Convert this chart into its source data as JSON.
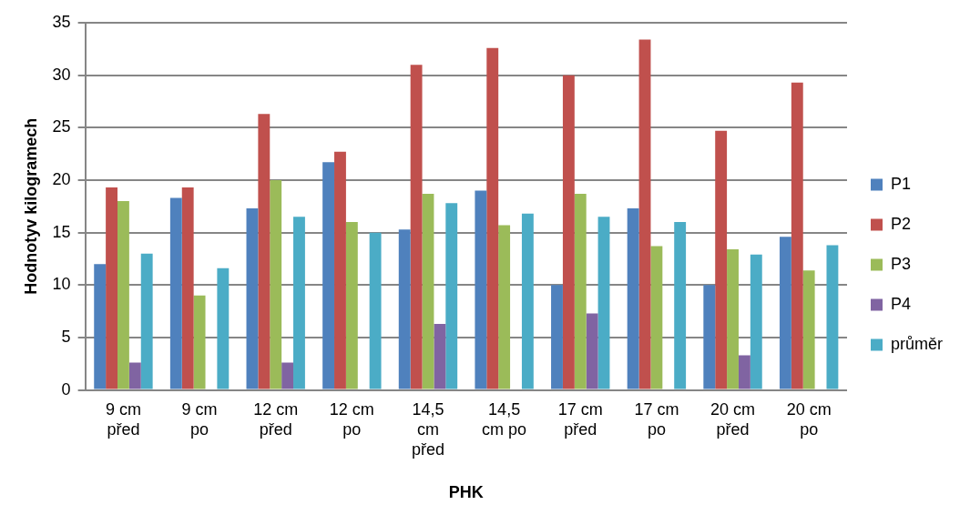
{
  "chart_data": {
    "type": "bar",
    "xlabel": "PHK",
    "ylabel": "Hodnotyv kilogramech",
    "categories": [
      "9 cm před",
      "9 cm po",
      "12 cm před",
      "12 cm po",
      "14,5 cm před",
      "14,5 cm po",
      "17 cm před",
      "17 cm po",
      "20 cm před",
      "20 cm po"
    ],
    "series": [
      {
        "name": "P1",
        "color": "#4f81bd",
        "values": [
          12,
          18.3,
          17.3,
          21.7,
          15.3,
          19,
          10,
          17.3,
          10,
          14.6
        ]
      },
      {
        "name": "P2",
        "color": "#c0504d",
        "values": [
          19.3,
          19.3,
          26.3,
          22.7,
          31,
          32.6,
          30,
          33.4,
          24.7,
          29.3
        ]
      },
      {
        "name": "P3",
        "color": "#9bbb59",
        "values": [
          18,
          9,
          20,
          16,
          18.7,
          15.7,
          18.7,
          13.7,
          13.4,
          11.4
        ]
      },
      {
        "name": "P4",
        "color": "#8064a2",
        "values": [
          2.6,
          null,
          2.6,
          null,
          6.3,
          null,
          7.3,
          null,
          3.3,
          null
        ]
      },
      {
        "name": "průměr",
        "color": "#4bacc6",
        "values": [
          13,
          11.6,
          16.5,
          15,
          17.8,
          16.8,
          16.5,
          16,
          12.9,
          13.8
        ]
      }
    ],
    "ylim": [
      0,
      35
    ],
    "yticks": [
      0,
      5,
      10,
      15,
      20,
      25,
      30,
      35
    ],
    "grid": "y",
    "legend": "right"
  }
}
